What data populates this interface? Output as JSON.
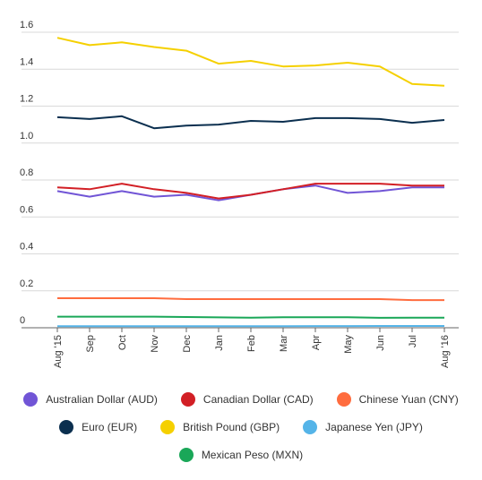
{
  "chart_data": {
    "type": "line",
    "categories": [
      "Aug '15",
      "Sep",
      "Oct",
      "Nov",
      "Dec",
      "Jan",
      "Feb",
      "Mar",
      "Apr",
      "May",
      "Jun",
      "Jul",
      "Aug '16"
    ],
    "ylim": [
      0,
      1.6
    ],
    "yticks": [
      "0",
      "0.2",
      "0.4",
      "0.6",
      "0.8",
      "1.0",
      "1.2",
      "1.4",
      "1.6"
    ],
    "grid": true,
    "legend_position": "bottom",
    "series": [
      {
        "name": "Australian Dollar (AUD)",
        "color": "#7155d6",
        "values": [
          0.74,
          0.71,
          0.74,
          0.71,
          0.72,
          0.69,
          0.72,
          0.75,
          0.77,
          0.73,
          0.74,
          0.76,
          0.76
        ]
      },
      {
        "name": "Canadian Dollar (CAD)",
        "color": "#d21f25",
        "values": [
          0.76,
          0.75,
          0.78,
          0.75,
          0.73,
          0.7,
          0.72,
          0.75,
          0.78,
          0.78,
          0.78,
          0.77,
          0.77
        ]
      },
      {
        "name": "Chinese Yuan (CNY)",
        "color": "#ff6c3e",
        "values": [
          0.16,
          0.16,
          0.16,
          0.16,
          0.155,
          0.155,
          0.155,
          0.155,
          0.155,
          0.155,
          0.155,
          0.15,
          0.15
        ]
      },
      {
        "name": "Euro (EUR)",
        "color": "#0b2f4f",
        "values": [
          1.14,
          1.13,
          1.145,
          1.08,
          1.095,
          1.1,
          1.12,
          1.115,
          1.135,
          1.135,
          1.13,
          1.11,
          1.125
        ]
      },
      {
        "name": "British Pound (GBP)",
        "color": "#f5d000",
        "values": [
          1.57,
          1.53,
          1.545,
          1.52,
          1.5,
          1.43,
          1.445,
          1.415,
          1.42,
          1.435,
          1.415,
          1.32,
          1.31
        ]
      },
      {
        "name": "Japanese Yen (JPY)",
        "color": "#55b4e8",
        "values": [
          0.0083,
          0.0083,
          0.0083,
          0.0082,
          0.0081,
          0.0085,
          0.0086,
          0.0089,
          0.0091,
          0.0091,
          0.0095,
          0.0097,
          0.0099
        ]
      },
      {
        "name": "Mexican Peso (MXN)",
        "color": "#1aa758",
        "values": [
          0.06,
          0.06,
          0.06,
          0.06,
          0.058,
          0.056,
          0.055,
          0.057,
          0.057,
          0.057,
          0.054,
          0.055,
          0.055
        ]
      }
    ]
  }
}
